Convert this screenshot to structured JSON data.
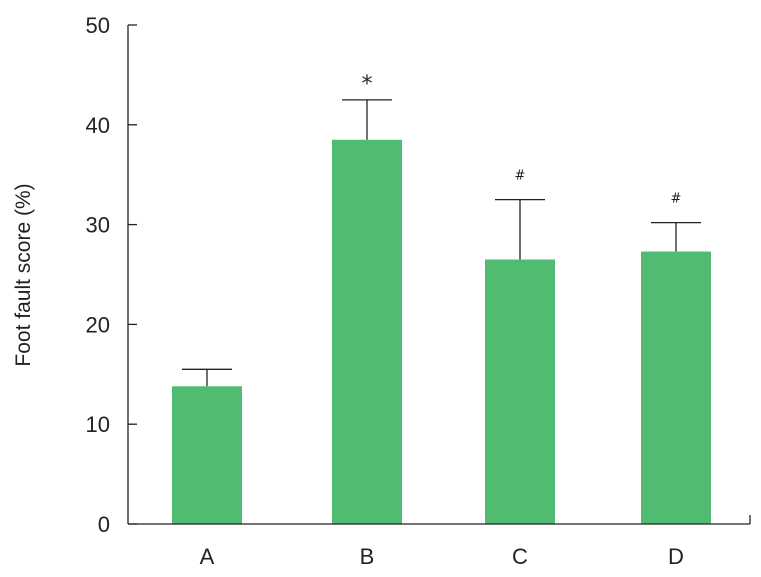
{
  "chart_data": {
    "type": "bar",
    "categories": [
      "A",
      "B",
      "C",
      "D"
    ],
    "values": [
      13.8,
      38.5,
      26.5,
      27.3
    ],
    "error_upper": [
      15.5,
      42.5,
      32.5,
      30.2
    ],
    "annotations": [
      "",
      "*",
      "#",
      "#"
    ],
    "title": "",
    "xlabel": "",
    "ylabel": "Foot fault score (%)",
    "ylim": [
      0,
      50
    ],
    "yticks": [
      "0",
      "10",
      "20",
      "30",
      "40",
      "50"
    ],
    "grid": false,
    "legend": "none",
    "bar_color": "#52bb72"
  }
}
